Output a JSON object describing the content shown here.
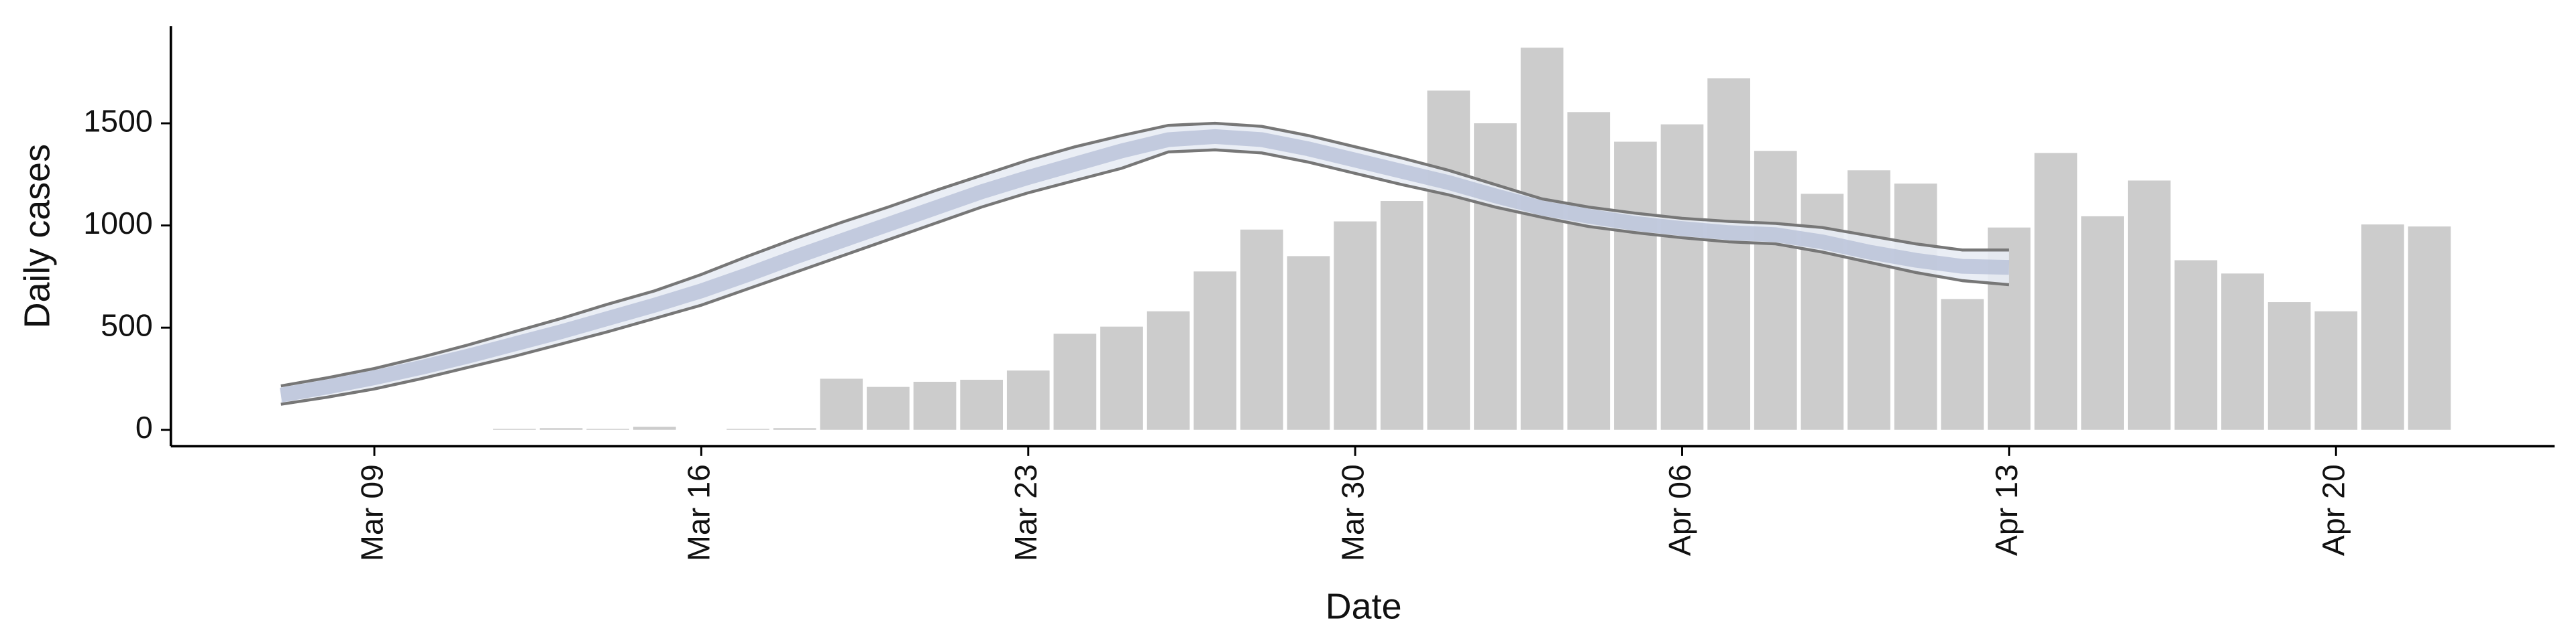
{
  "chart_data": {
    "type": "bar",
    "x_label": "Date",
    "y_label": "Daily cases",
    "categories": [
      null,
      null,
      "Mar 09",
      null,
      null,
      null,
      null,
      null,
      null,
      "Mar 16",
      null,
      null,
      null,
      null,
      null,
      null,
      "Mar 23",
      null,
      null,
      null,
      null,
      null,
      null,
      "Mar 30",
      null,
      null,
      null,
      null,
      null,
      null,
      "Apr 06",
      null,
      null,
      null,
      null,
      null,
      null,
      "Apr 13",
      null,
      null,
      null,
      null,
      null,
      null,
      "Apr 20",
      null,
      null
    ],
    "values": [
      null,
      null,
      null,
      null,
      null,
      5,
      8,
      5,
      15,
      0,
      5,
      8,
      250,
      210,
      235,
      245,
      290,
      470,
      505,
      580,
      775,
      980,
      850,
      1020,
      1120,
      1660,
      1500,
      1870,
      1555,
      1410,
      1495,
      1720,
      1365,
      1155,
      1270,
      1205,
      640,
      990,
      1355,
      1045,
      1220,
      830,
      765,
      625,
      580,
      1005,
      995
    ],
    "color": "#cccccc",
    "ylim": [
      -80,
      1975
    ],
    "yticks": [
      0,
      500,
      1000,
      1500
    ],
    "ribbon": {
      "color": "#e8ecf4",
      "edge_color": "#777777",
      "lower": [
        125,
        160,
        200,
        250,
        305,
        360,
        420,
        480,
        545,
        610,
        690,
        770,
        850,
        930,
        1010,
        1090,
        1160,
        1220,
        1280,
        1360,
        1370,
        1355,
        1310,
        1255,
        1200,
        1150,
        1090,
        1040,
        995,
        965,
        940,
        920,
        910,
        870,
        820,
        770,
        730,
        710,
        null,
        null,
        null,
        null,
        null,
        null,
        null,
        null,
        null
      ],
      "upper": [
        215,
        255,
        300,
        355,
        415,
        480,
        545,
        615,
        680,
        760,
        850,
        935,
        1015,
        1090,
        1170,
        1245,
        1320,
        1385,
        1440,
        1490,
        1500,
        1485,
        1440,
        1385,
        1330,
        1270,
        1200,
        1130,
        1090,
        1060,
        1035,
        1020,
        1010,
        990,
        950,
        910,
        880,
        880,
        null,
        null,
        null,
        null,
        null,
        null,
        null,
        null,
        null
      ]
    },
    "line": {
      "color": "#b4bdd6",
      "values": [
        170,
        210,
        255,
        305,
        360,
        420,
        480,
        545,
        610,
        680,
        760,
        845,
        925,
        1005,
        1085,
        1165,
        1235,
        1300,
        1365,
        1420,
        1435,
        1420,
        1375,
        1320,
        1265,
        1210,
        1145,
        1085,
        1045,
        1010,
        985,
        965,
        955,
        920,
        870,
        830,
        800,
        795,
        null,
        null,
        null,
        null,
        null,
        null,
        null,
        null,
        null
      ]
    }
  }
}
